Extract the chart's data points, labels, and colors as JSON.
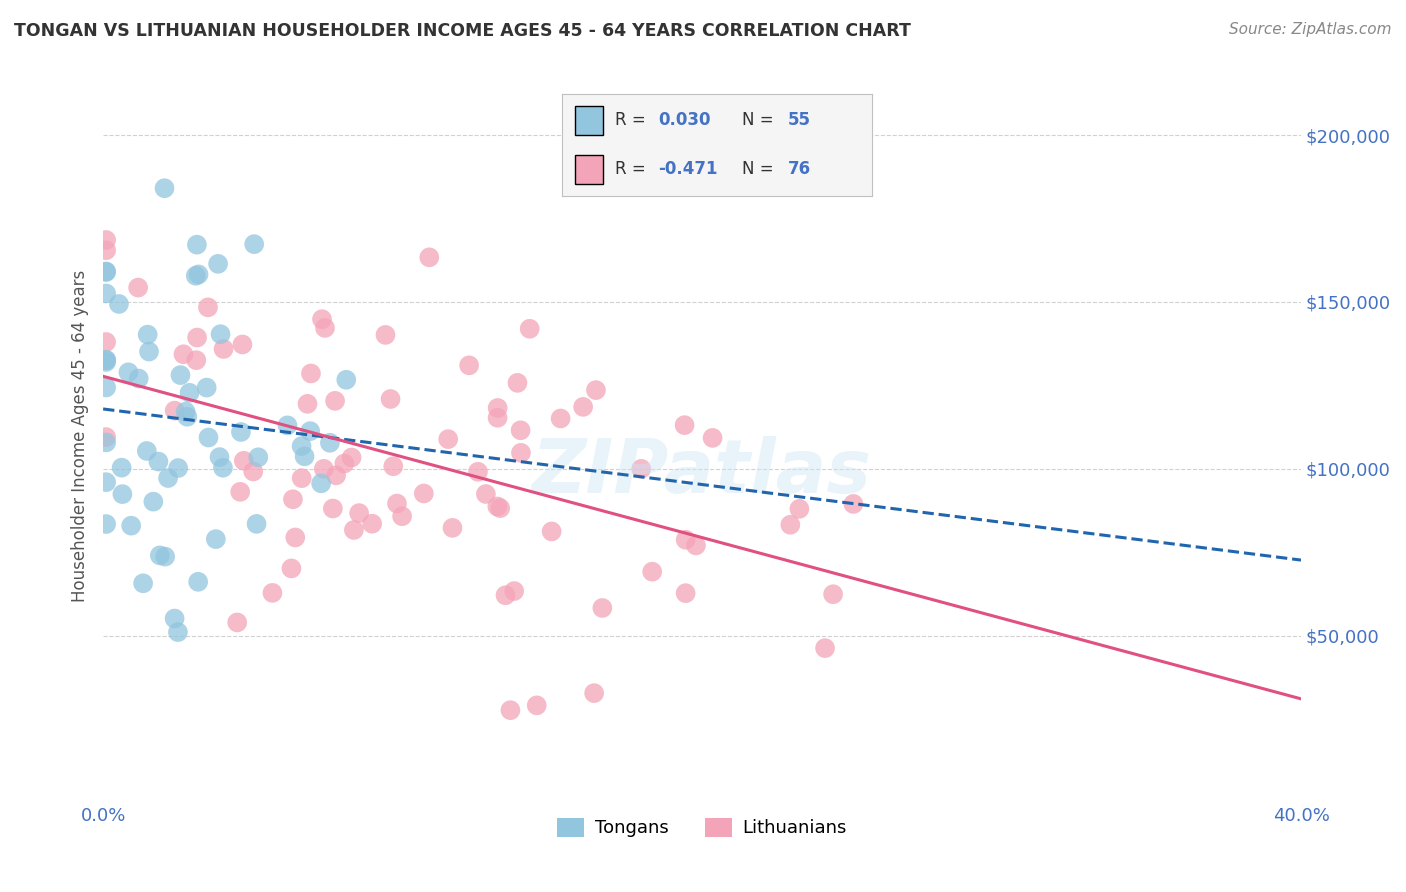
{
  "title": "TONGAN VS LITHUANIAN HOUSEHOLDER INCOME AGES 45 - 64 YEARS CORRELATION CHART",
  "source": "Source: ZipAtlas.com",
  "ylabel_label": "Householder Income Ages 45 - 64 years",
  "legend_labels": [
    "Tongans",
    "Lithuanians"
  ],
  "tongan_R": 0.03,
  "tongan_N": 55,
  "lithuanian_R": -0.471,
  "lithuanian_N": 76,
  "blue_color": "#92c5de",
  "pink_color": "#f4a4b8",
  "blue_line_color": "#2166ac",
  "pink_line_color": "#e05080",
  "blue_text_color": "#4472c4",
  "xlim": [
    0.0,
    0.4
  ],
  "ylim": [
    0,
    220000
  ],
  "yticks": [
    50000,
    100000,
    150000,
    200000
  ],
  "ytick_labels": [
    "$50,000",
    "$100,000",
    "$150,000",
    "$200,000"
  ],
  "xticks": [
    0.0,
    0.4
  ],
  "xtick_labels": [
    "0.0%",
    "40.0%"
  ],
  "background_color": "#ffffff",
  "grid_color": "#cccccc",
  "tongan_seed": 7,
  "lithuanian_seed": 13
}
